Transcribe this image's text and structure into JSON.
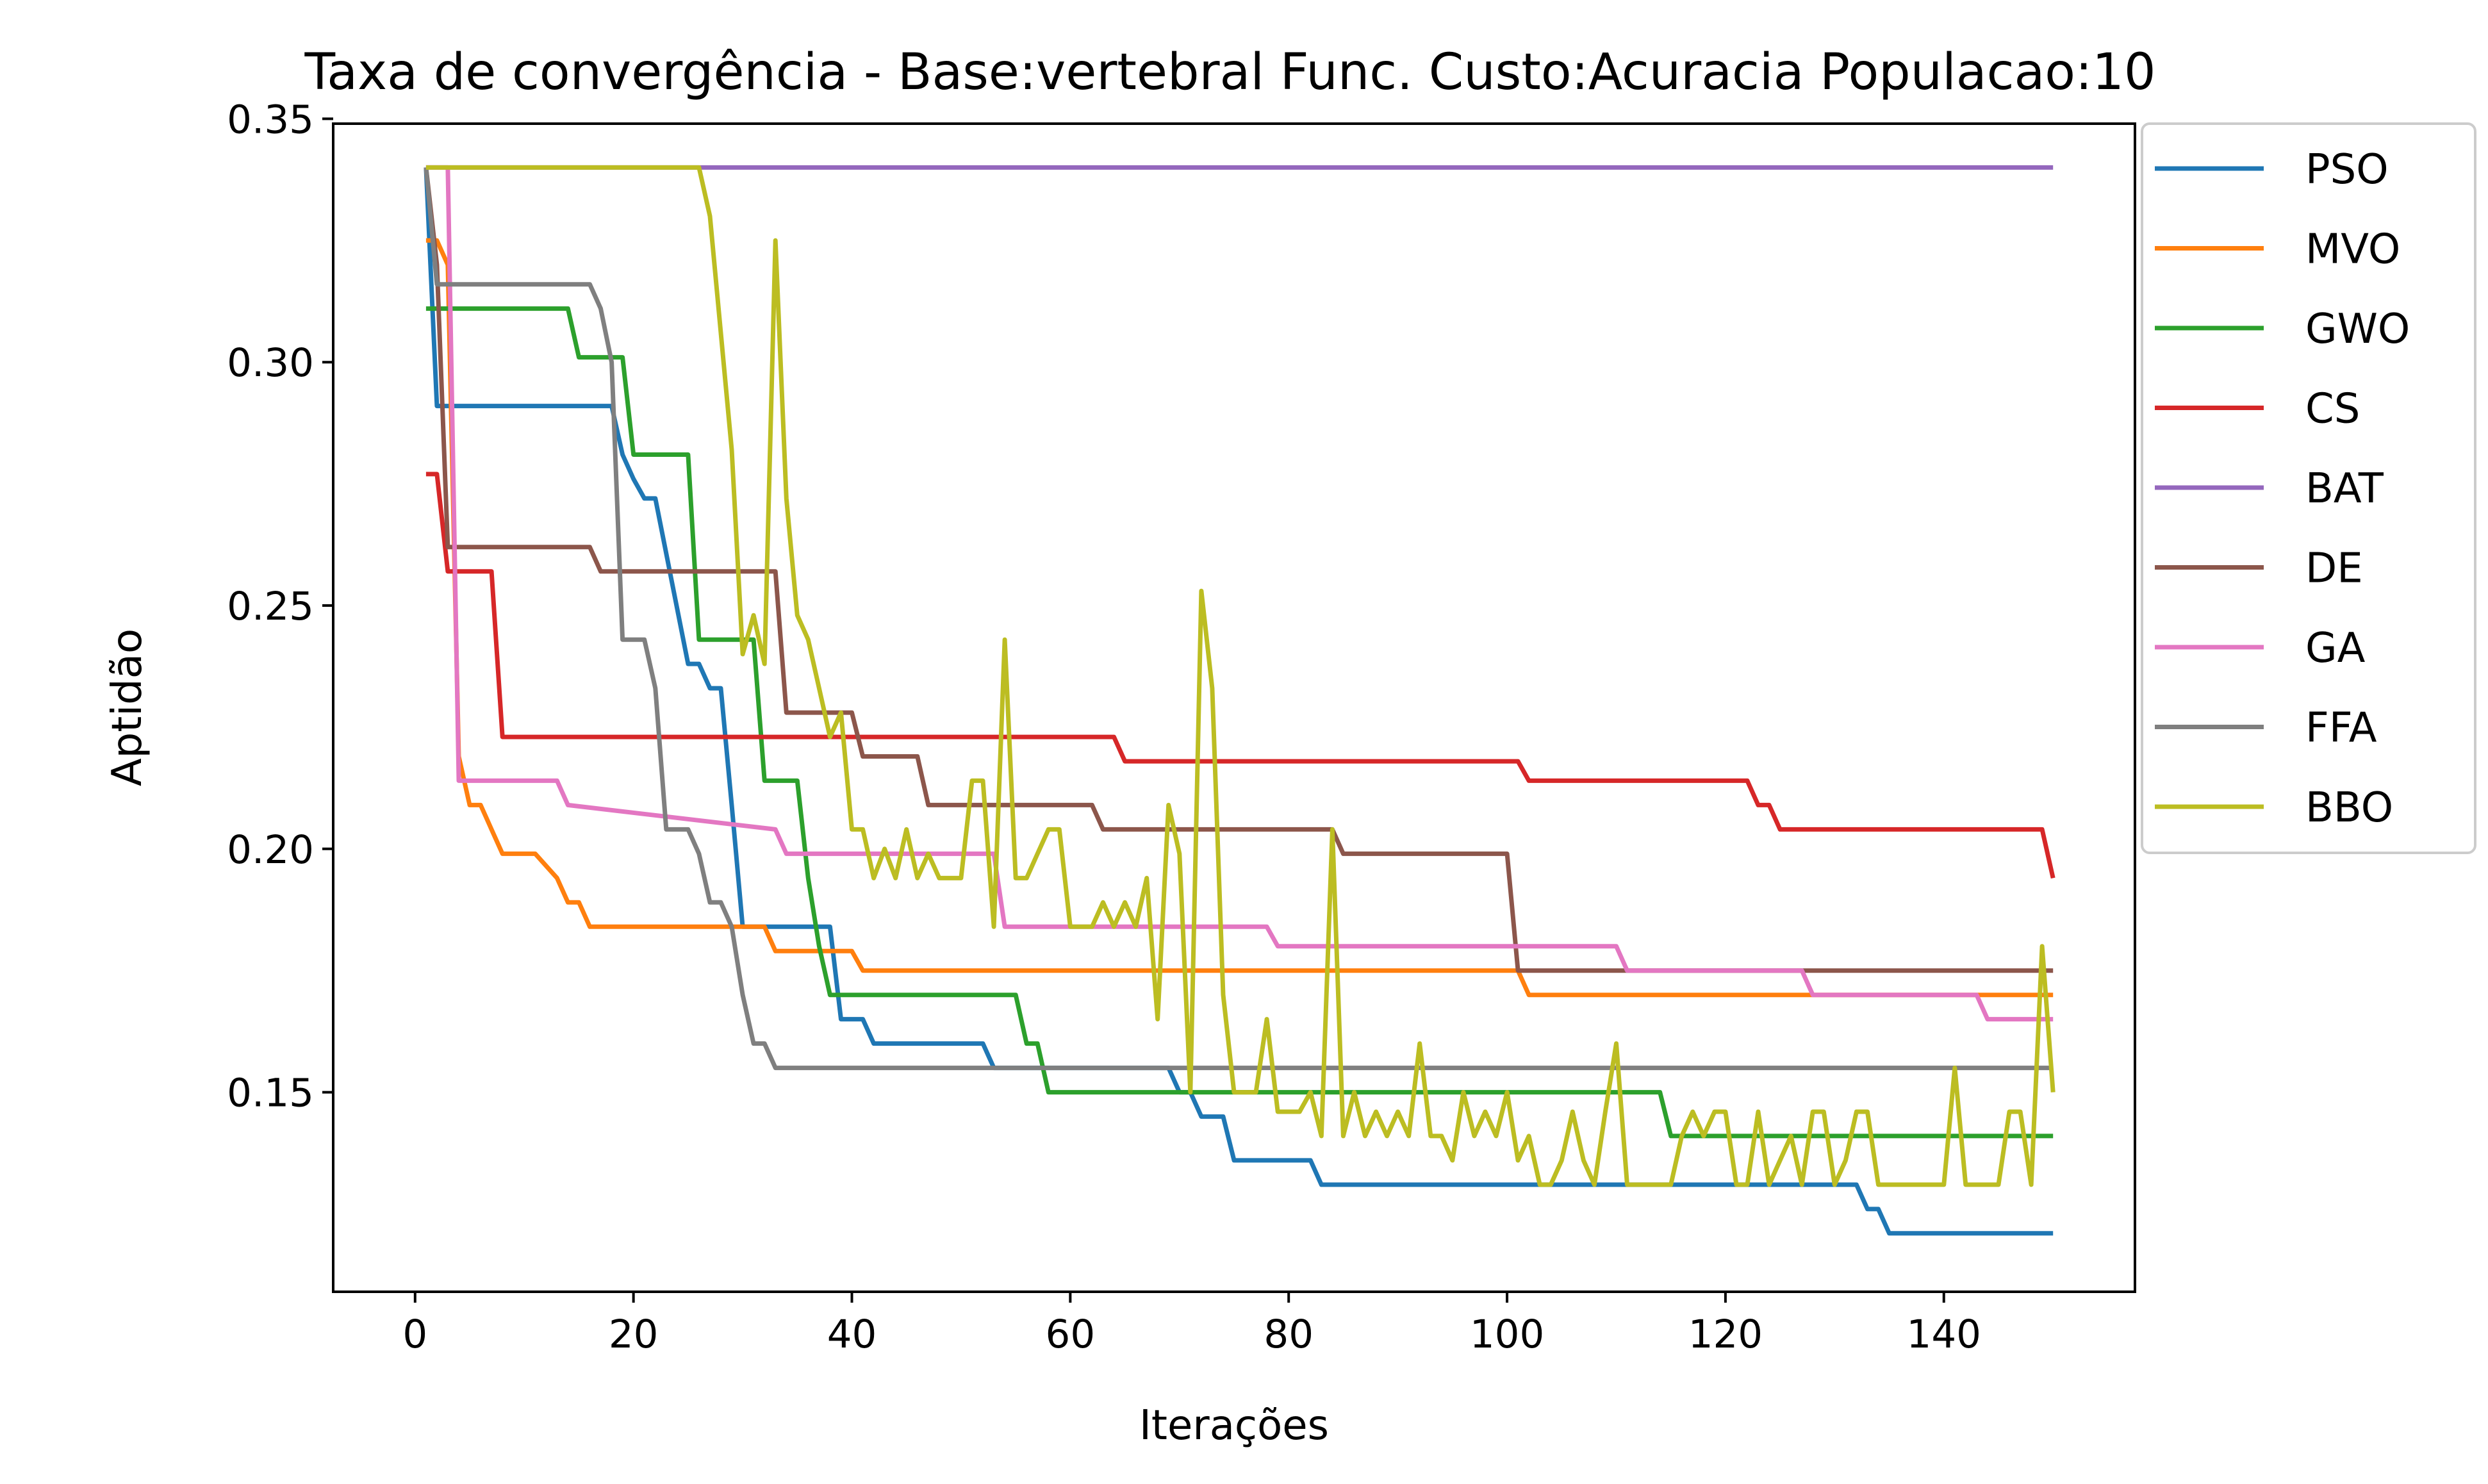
{
  "chart_data": {
    "type": "line",
    "title": "Taxa de convergência - Base:vertebral Func. Custo:Acuracia Populacao:10",
    "xlabel": "Iterações",
    "ylabel": "Aptidão",
    "xlim": [
      -7.5,
      157.5
    ],
    "ylim": [
      0.109,
      0.349
    ],
    "xticks": [
      0,
      20,
      40,
      60,
      80,
      100,
      120,
      140
    ],
    "yticks": [
      0.15,
      0.2,
      0.25,
      0.3,
      0.35
    ],
    "xtick_labels": [
      "0",
      "20",
      "40",
      "60",
      "80",
      "100",
      "120",
      "140"
    ],
    "ytick_labels": [
      "0.15",
      "0.20",
      "0.25",
      "0.30",
      "0.35"
    ],
    "grid": false,
    "legend_position": "outside top-right",
    "series": [
      {
        "name": "PSO",
        "color": "#1f77b4",
        "x": [
          1,
          2,
          18,
          19,
          20,
          21,
          22,
          25,
          26,
          27,
          28,
          29,
          30,
          31,
          38,
          39,
          41,
          42,
          52,
          53,
          69,
          70,
          71,
          72,
          74,
          75,
          82,
          83,
          100,
          101,
          132,
          133,
          134,
          135,
          150
        ],
        "y": [
          0.34,
          0.291,
          0.291,
          0.281,
          0.276,
          0.272,
          0.272,
          0.238,
          0.238,
          0.233,
          0.233,
          0.209,
          0.184,
          0.184,
          0.184,
          0.165,
          0.165,
          0.16,
          0.16,
          0.155,
          0.155,
          0.15,
          0.15,
          0.145,
          0.145,
          0.136,
          0.136,
          0.131,
          0.131,
          0.131,
          0.131,
          0.126,
          0.126,
          0.121,
          0.121
        ]
      },
      {
        "name": "MVO",
        "color": "#ff7f0e",
        "x": [
          1,
          2,
          3,
          4,
          5,
          6,
          7,
          8,
          11,
          13,
          14,
          15,
          16,
          32,
          33,
          40,
          41,
          101,
          102,
          150
        ],
        "y": [
          0.325,
          0.325,
          0.32,
          0.219,
          0.209,
          0.209,
          0.204,
          0.199,
          0.199,
          0.194,
          0.189,
          0.189,
          0.184,
          0.184,
          0.179,
          0.179,
          0.175,
          0.175,
          0.17,
          0.17
        ]
      },
      {
        "name": "GWO",
        "color": "#2ca02c",
        "x": [
          1,
          14,
          15,
          19,
          20,
          25,
          26,
          27,
          31,
          32,
          35,
          36,
          37,
          38,
          55,
          56,
          57,
          58,
          114,
          115,
          150
        ],
        "y": [
          0.311,
          0.311,
          0.301,
          0.301,
          0.281,
          0.281,
          0.243,
          0.243,
          0.243,
          0.214,
          0.214,
          0.194,
          0.18,
          0.17,
          0.17,
          0.16,
          0.16,
          0.15,
          0.15,
          0.141,
          0.141
        ]
      },
      {
        "name": "CS",
        "color": "#d62728",
        "x": [
          1,
          2,
          3,
          7,
          8,
          64,
          65,
          101,
          102,
          122,
          123,
          124,
          125,
          149,
          150
        ],
        "y": [
          0.277,
          0.277,
          0.257,
          0.257,
          0.223,
          0.223,
          0.218,
          0.218,
          0.214,
          0.214,
          0.209,
          0.209,
          0.204,
          0.204,
          0.194
        ]
      },
      {
        "name": "BAT",
        "color": "#9467bd",
        "x": [
          1,
          150
        ],
        "y": [
          0.34,
          0.34
        ]
      },
      {
        "name": "DE",
        "color": "#8c564b",
        "x": [
          1,
          2,
          3,
          16,
          17,
          33,
          34,
          40,
          41,
          46,
          47,
          62,
          63,
          84,
          85,
          100,
          101,
          150
        ],
        "y": [
          0.34,
          0.32,
          0.262,
          0.262,
          0.257,
          0.257,
          0.228,
          0.228,
          0.219,
          0.219,
          0.209,
          0.209,
          0.204,
          0.204,
          0.199,
          0.199,
          0.175,
          0.175
        ]
      },
      {
        "name": "GA",
        "color": "#e377c2",
        "x": [
          1,
          2,
          3,
          4,
          13,
          14,
          33,
          34,
          53,
          54,
          78,
          79,
          110,
          111,
          127,
          128,
          143,
          144,
          150
        ],
        "y": [
          0.34,
          0.34,
          0.34,
          0.214,
          0.214,
          0.209,
          0.204,
          0.199,
          0.199,
          0.184,
          0.184,
          0.18,
          0.18,
          0.175,
          0.175,
          0.17,
          0.17,
          0.165,
          0.165
        ]
      },
      {
        "name": "FFA",
        "color": "#7f7f7f",
        "x": [
          1,
          2,
          16,
          17,
          18,
          19,
          21,
          22,
          23,
          25,
          26,
          27,
          28,
          29,
          30,
          31,
          32,
          33,
          150
        ],
        "y": [
          0.34,
          0.316,
          0.316,
          0.311,
          0.3,
          0.243,
          0.243,
          0.233,
          0.204,
          0.204,
          0.199,
          0.189,
          0.189,
          0.184,
          0.17,
          0.16,
          0.16,
          0.155,
          0.155
        ]
      },
      {
        "name": "BBO",
        "color": "#bcbd22",
        "x": [
          1,
          25,
          26,
          27,
          29,
          30,
          31,
          32,
          33,
          34,
          35,
          36,
          37,
          38,
          39,
          40,
          41,
          42,
          43,
          44,
          45,
          46,
          47,
          48,
          49,
          50,
          51,
          52,
          53,
          54,
          55,
          56,
          57,
          58,
          59,
          60,
          61,
          62,
          63,
          64,
          65,
          66,
          67,
          68,
          69,
          70,
          71,
          72,
          73,
          74,
          75,
          76,
          77,
          78,
          79,
          80,
          81,
          82,
          83,
          84,
          85,
          86,
          87,
          88,
          89,
          90,
          91,
          92,
          93,
          94,
          95,
          96,
          97,
          98,
          99,
          100,
          101,
          102,
          103,
          104,
          105,
          106,
          107,
          108,
          109,
          110,
          111,
          112,
          113,
          114,
          115,
          116,
          117,
          118,
          119,
          120,
          121,
          122,
          123,
          124,
          125,
          126,
          127,
          128,
          129,
          130,
          131,
          132,
          133,
          134,
          135,
          136,
          137,
          138,
          139,
          140,
          141,
          142,
          143,
          144,
          145,
          146,
          147,
          148,
          149,
          150
        ],
        "y": [
          0.34,
          0.34,
          0.34,
          0.33,
          0.282,
          0.24,
          0.248,
          0.238,
          0.325,
          0.272,
          0.248,
          0.243,
          0.233,
          0.223,
          0.228,
          0.204,
          0.204,
          0.194,
          0.2,
          0.194,
          0.204,
          0.194,
          0.199,
          0.194,
          0.194,
          0.194,
          0.214,
          0.214,
          0.184,
          0.243,
          0.194,
          0.194,
          0.199,
          0.204,
          0.204,
          0.184,
          0.184,
          0.184,
          0.189,
          0.184,
          0.189,
          0.184,
          0.194,
          0.165,
          0.209,
          0.199,
          0.15,
          0.253,
          0.233,
          0.17,
          0.15,
          0.15,
          0.15,
          0.165,
          0.146,
          0.146,
          0.146,
          0.15,
          0.141,
          0.204,
          0.141,
          0.15,
          0.141,
          0.146,
          0.141,
          0.146,
          0.141,
          0.16,
          0.141,
          0.141,
          0.136,
          0.15,
          0.141,
          0.146,
          0.141,
          0.15,
          0.136,
          0.141,
          0.131,
          0.131,
          0.136,
          0.146,
          0.136,
          0.131,
          0.146,
          0.16,
          0.131,
          0.131,
          0.131,
          0.131,
          0.131,
          0.141,
          0.146,
          0.141,
          0.146,
          0.146,
          0.131,
          0.131,
          0.146,
          0.131,
          0.136,
          0.141,
          0.131,
          0.146,
          0.146,
          0.131,
          0.136,
          0.146,
          0.146,
          0.131,
          0.131,
          0.131,
          0.131,
          0.131,
          0.131,
          0.131,
          0.155,
          0.131,
          0.131,
          0.131,
          0.131,
          0.146,
          0.146,
          0.131,
          0.18,
          0.15
        ]
      }
    ]
  }
}
